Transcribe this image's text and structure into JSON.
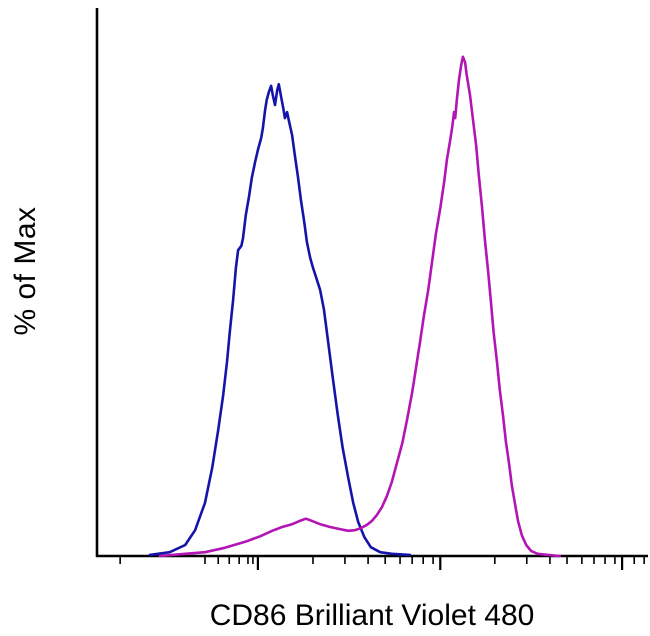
{
  "chart_data": {
    "type": "line",
    "subtype": "flow-cytometry-histogram-overlay",
    "title": "",
    "xlabel": "CD86 Brilliant Violet 480",
    "ylabel": "% of Max",
    "x_units": "fraction-of-axis (biexponential fluorescence scale, no numeric labels shown)",
    "y_units": "percent-of-max",
    "x_axis": {
      "scale": "biexponential-log",
      "tick_labels": [],
      "major_ticks": [
        0.292,
        0.623,
        0.953
      ],
      "minor_ticks": [
        0.042,
        0.196,
        0.22,
        0.24,
        0.258,
        0.274,
        0.283,
        0.392,
        0.45,
        0.492,
        0.523,
        0.55,
        0.572,
        0.592,
        0.61,
        0.722,
        0.78,
        0.822,
        0.853,
        0.88,
        0.902,
        0.922,
        0.94,
        0.975,
        0.993
      ]
    },
    "y_axis": {
      "range": [
        0,
        100
      ],
      "ticks": []
    },
    "grid": false,
    "legend": "none",
    "series": [
      {
        "name": "blue-curve",
        "color": "#1414AA",
        "points": [
          [
            0.096,
            0.2
          ],
          [
            0.132,
            0.7
          ],
          [
            0.16,
            2.0
          ],
          [
            0.178,
            4.7
          ],
          [
            0.196,
            9.7
          ],
          [
            0.209,
            16.1
          ],
          [
            0.22,
            23.0
          ],
          [
            0.229,
            29.4
          ],
          [
            0.236,
            35.4
          ],
          [
            0.241,
            40.9
          ],
          [
            0.247,
            46.7
          ],
          [
            0.252,
            52.6
          ],
          [
            0.256,
            55.8
          ],
          [
            0.262,
            56.6
          ],
          [
            0.265,
            58.0
          ],
          [
            0.27,
            62.2
          ],
          [
            0.276,
            65.7
          ],
          [
            0.281,
            69.0
          ],
          [
            0.287,
            71.9
          ],
          [
            0.292,
            74.1
          ],
          [
            0.298,
            76.3
          ],
          [
            0.301,
            78.1
          ],
          [
            0.305,
            81.4
          ],
          [
            0.308,
            83.2
          ],
          [
            0.312,
            84.7
          ],
          [
            0.316,
            85.8
          ],
          [
            0.319,
            84.1
          ],
          [
            0.323,
            82.3
          ],
          [
            0.327,
            85.0
          ],
          [
            0.33,
            86.1
          ],
          [
            0.334,
            83.9
          ],
          [
            0.338,
            81.8
          ],
          [
            0.341,
            79.9
          ],
          [
            0.345,
            81.0
          ],
          [
            0.348,
            79.6
          ],
          [
            0.354,
            76.8
          ],
          [
            0.359,
            73.2
          ],
          [
            0.365,
            69.0
          ],
          [
            0.37,
            65.0
          ],
          [
            0.376,
            61.0
          ],
          [
            0.381,
            57.3
          ],
          [
            0.387,
            54.4
          ],
          [
            0.392,
            52.6
          ],
          [
            0.397,
            51.1
          ],
          [
            0.405,
            48.5
          ],
          [
            0.412,
            44.9
          ],
          [
            0.419,
            39.4
          ],
          [
            0.428,
            32.5
          ],
          [
            0.437,
            25.7
          ],
          [
            0.446,
            19.7
          ],
          [
            0.456,
            14.2
          ],
          [
            0.465,
            9.7
          ],
          [
            0.474,
            6.2
          ],
          [
            0.485,
            3.5
          ],
          [
            0.497,
            1.6
          ],
          [
            0.514,
            0.7
          ],
          [
            0.535,
            0.4
          ],
          [
            0.568,
            0.2
          ]
        ]
      },
      {
        "name": "magenta-curve",
        "color": "#B315B5",
        "points": [
          [
            0.114,
            0.0
          ],
          [
            0.16,
            0.4
          ],
          [
            0.196,
            0.7
          ],
          [
            0.232,
            1.5
          ],
          [
            0.269,
            2.6
          ],
          [
            0.296,
            3.6
          ],
          [
            0.318,
            4.6
          ],
          [
            0.336,
            5.3
          ],
          [
            0.354,
            5.8
          ],
          [
            0.368,
            6.4
          ],
          [
            0.379,
            6.8
          ],
          [
            0.39,
            6.4
          ],
          [
            0.405,
            5.8
          ],
          [
            0.423,
            5.3
          ],
          [
            0.441,
            4.9
          ],
          [
            0.456,
            4.6
          ],
          [
            0.468,
            4.7
          ],
          [
            0.479,
            5.1
          ],
          [
            0.49,
            5.7
          ],
          [
            0.499,
            6.4
          ],
          [
            0.508,
            7.5
          ],
          [
            0.517,
            8.9
          ],
          [
            0.526,
            10.9
          ],
          [
            0.535,
            13.5
          ],
          [
            0.544,
            16.8
          ],
          [
            0.554,
            20.6
          ],
          [
            0.563,
            25.0
          ],
          [
            0.572,
            29.9
          ],
          [
            0.579,
            34.3
          ],
          [
            0.586,
            38.9
          ],
          [
            0.593,
            43.6
          ],
          [
            0.601,
            48.5
          ],
          [
            0.608,
            53.6
          ],
          [
            0.615,
            58.8
          ],
          [
            0.623,
            63.5
          ],
          [
            0.63,
            68.2
          ],
          [
            0.635,
            72.3
          ],
          [
            0.641,
            75.9
          ],
          [
            0.645,
            78.5
          ],
          [
            0.648,
            81.0
          ],
          [
            0.65,
            79.9
          ],
          [
            0.653,
            83.2
          ],
          [
            0.657,
            86.9
          ],
          [
            0.661,
            89.6
          ],
          [
            0.664,
            91.1
          ],
          [
            0.668,
            90.1
          ],
          [
            0.671,
            87.8
          ],
          [
            0.677,
            84.1
          ],
          [
            0.682,
            79.9
          ],
          [
            0.688,
            75.0
          ],
          [
            0.693,
            69.5
          ],
          [
            0.699,
            63.5
          ],
          [
            0.704,
            57.7
          ],
          [
            0.71,
            51.8
          ],
          [
            0.715,
            46.2
          ],
          [
            0.72,
            40.7
          ],
          [
            0.726,
            35.4
          ],
          [
            0.731,
            30.3
          ],
          [
            0.737,
            25.5
          ],
          [
            0.742,
            21.0
          ],
          [
            0.748,
            16.8
          ],
          [
            0.753,
            12.8
          ],
          [
            0.759,
            9.3
          ],
          [
            0.764,
            6.4
          ],
          [
            0.771,
            3.8
          ],
          [
            0.779,
            2.0
          ],
          [
            0.788,
            0.9
          ],
          [
            0.8,
            0.4
          ],
          [
            0.818,
            0.2
          ],
          [
            0.84,
            0.0
          ]
        ]
      }
    ]
  }
}
